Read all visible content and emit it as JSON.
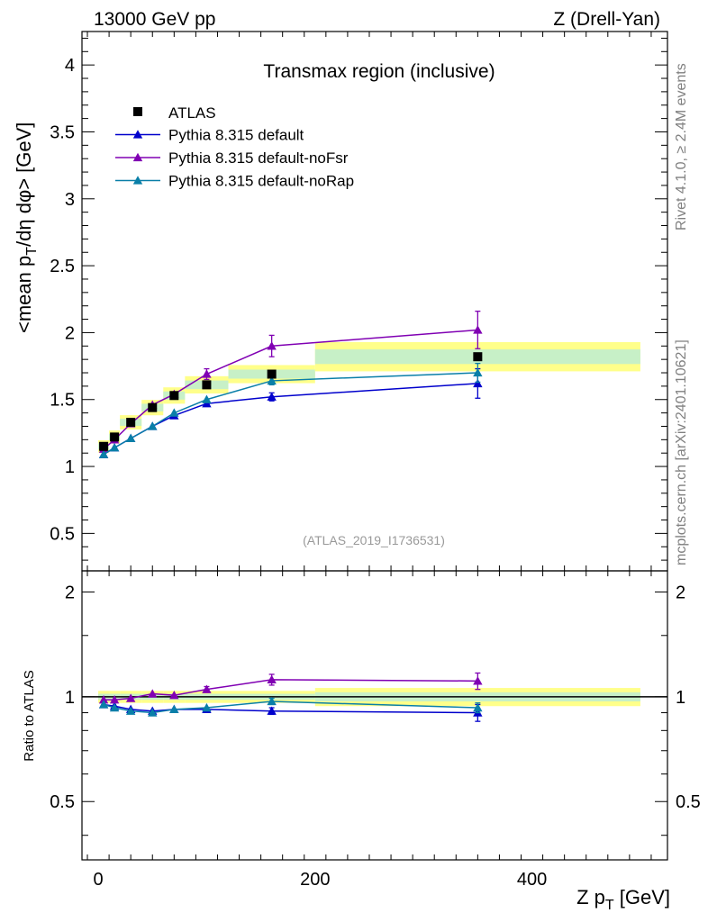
{
  "header": {
    "energy": "13000 GeV pp",
    "process": "Z (Drell-Yan)"
  },
  "side_labels": {
    "rivet": "Rivet 4.1.0, ≥ 2.4M events",
    "mcplots": "mcplots.cern.ch [arXiv:2401.10621]"
  },
  "chart_data": {
    "type": "scatter",
    "title": "Transmax region (inclusive)",
    "watermark": "(ATLAS_2019_I1736531)",
    "xlabel": "Z p_T [GeV]",
    "ylabel": "<mean p_T/dη dφ> [GeV]",
    "ratio_ylabel": "Ratio to ATLAS",
    "xlim": [
      -15,
      525
    ],
    "ylim": [
      0.22,
      4.25
    ],
    "ratio_ylim": [
      0.34,
      2.3
    ],
    "x_ticks": [
      0,
      200,
      400
    ],
    "y_ticks": [
      0.5,
      1,
      1.5,
      2,
      2.5,
      3,
      3.5,
      4
    ],
    "y_tick_labels": [
      "0.5",
      "1",
      "1.5",
      "2",
      "2.5",
      "3",
      "3.5",
      "4"
    ],
    "ratio_ticks": [
      0.5,
      1,
      2
    ],
    "ratio_tick_labels": [
      "0.5",
      "1",
      "2"
    ],
    "data": {
      "name": "ATLAS",
      "color": "#000000",
      "x": [
        5,
        15,
        30,
        50,
        70,
        100,
        160,
        350
      ],
      "y": [
        1.15,
        1.22,
        1.33,
        1.44,
        1.53,
        1.61,
        1.69,
        1.82
      ],
      "x_edges": [
        0,
        10,
        20,
        40,
        60,
        80,
        120,
        200,
        500
      ],
      "band_inner": [
        0.02,
        0.02,
        0.02,
        0.02,
        0.02,
        0.02,
        0.02,
        0.03
      ],
      "band_outer": [
        0.04,
        0.04,
        0.04,
        0.04,
        0.04,
        0.04,
        0.04,
        0.06
      ],
      "band_inner_color": "#c7f0c7",
      "band_outer_color": "#ffff8a"
    },
    "series": [
      {
        "name": "Pythia 8.315 default",
        "color": "#0000cc",
        "x": [
          5,
          15,
          30,
          50,
          70,
          100,
          160,
          350
        ],
        "y": [
          1.09,
          1.14,
          1.21,
          1.3,
          1.38,
          1.47,
          1.52,
          1.62
        ],
        "yerr": [
          0.01,
          0.01,
          0.01,
          0.01,
          0.01,
          0.02,
          0.03,
          0.11
        ],
        "ratio": [
          0.95,
          0.94,
          0.92,
          0.91,
          0.92,
          0.92,
          0.91,
          0.9
        ],
        "ratio_err": [
          0.01,
          0.01,
          0.01,
          0.01,
          0.01,
          0.01,
          0.02,
          0.05
        ]
      },
      {
        "name": "Pythia 8.315 default-noFsr",
        "color": "#8000b3",
        "x": [
          5,
          15,
          30,
          50,
          70,
          100,
          160,
          350
        ],
        "y": [
          1.13,
          1.2,
          1.32,
          1.46,
          1.54,
          1.69,
          1.9,
          2.02
        ],
        "yerr": [
          0.01,
          0.01,
          0.01,
          0.02,
          0.02,
          0.04,
          0.08,
          0.14
        ],
        "ratio": [
          0.98,
          0.98,
          0.99,
          1.02,
          1.01,
          1.05,
          1.12,
          1.11
        ],
        "ratio_err": [
          0.01,
          0.01,
          0.01,
          0.01,
          0.01,
          0.02,
          0.04,
          0.06
        ]
      },
      {
        "name": "Pythia 8.315 default-noRap",
        "color": "#0a7fa8",
        "x": [
          5,
          15,
          30,
          50,
          70,
          100,
          160,
          350
        ],
        "y": [
          1.09,
          1.14,
          1.21,
          1.3,
          1.4,
          1.5,
          1.64,
          1.7
        ],
        "yerr": [
          0.01,
          0.01,
          0.01,
          0.01,
          0.01,
          0.02,
          0.03,
          0.07
        ],
        "ratio": [
          0.95,
          0.93,
          0.91,
          0.9,
          0.92,
          0.93,
          0.97,
          0.93
        ],
        "ratio_err": [
          0.01,
          0.01,
          0.01,
          0.01,
          0.01,
          0.01,
          0.02,
          0.03
        ]
      }
    ],
    "legend_position": "top-left"
  }
}
